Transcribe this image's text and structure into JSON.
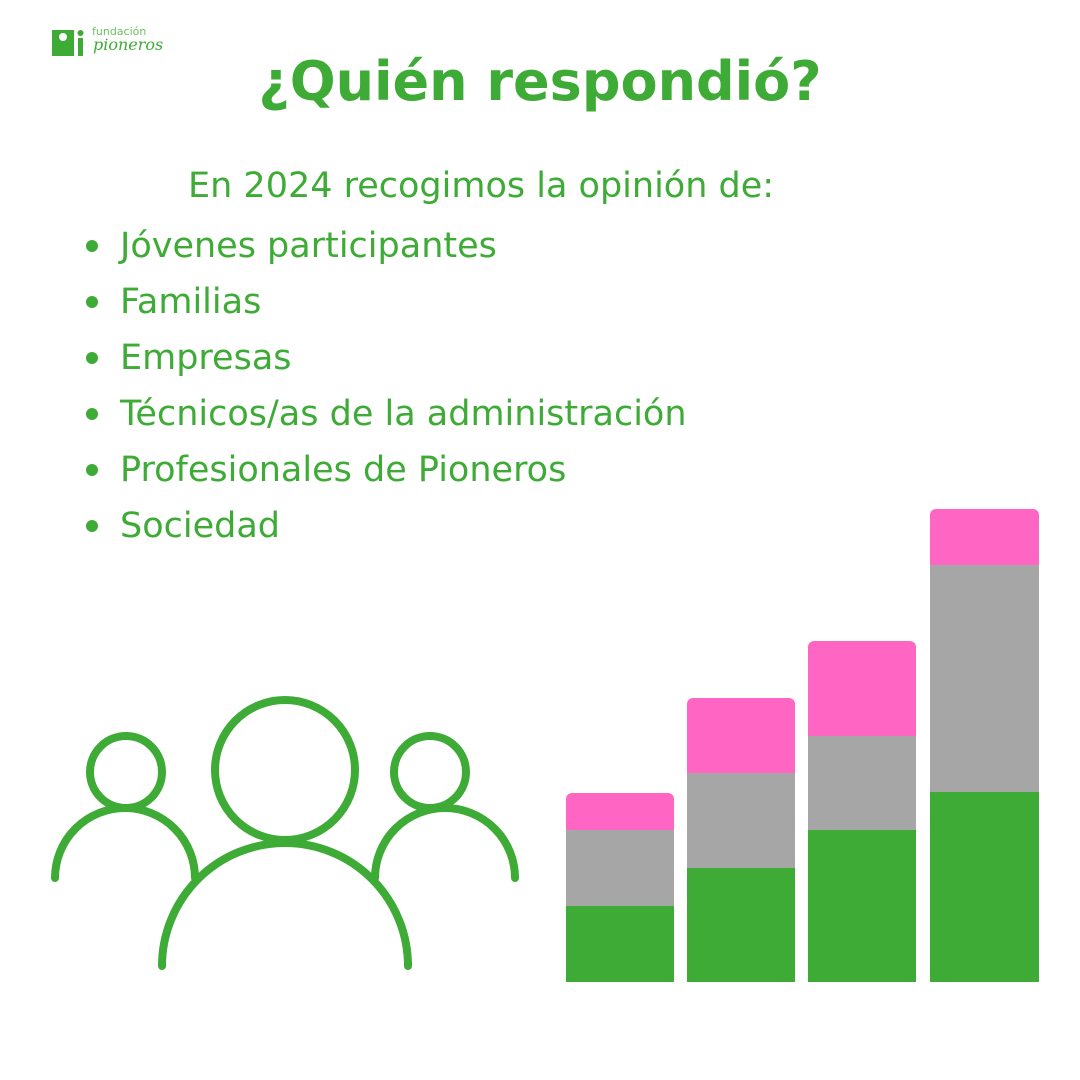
{
  "logo": {
    "line1": "fundación",
    "line2": "pioneros"
  },
  "title": "¿Quién respondió?",
  "intro": "En 2024 recogimos la opinión de:",
  "items": [
    "Jóvenes participantes",
    "Familias",
    "Empresas",
    "Técnicos/as de la administración",
    "Profesionales de Pioneros",
    "Sociedad"
  ]
}
